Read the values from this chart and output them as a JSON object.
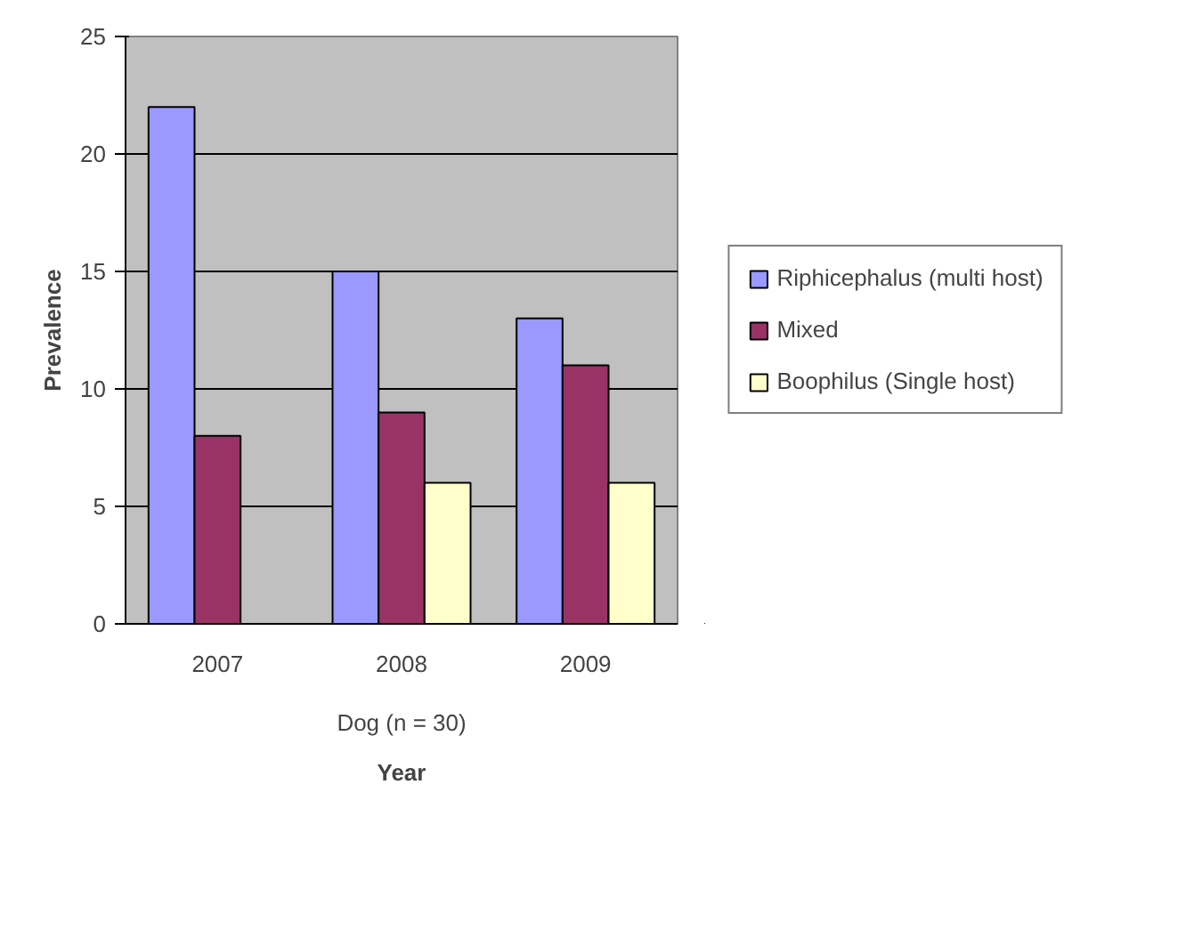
{
  "chart_data": {
    "type": "bar",
    "xlabel": "Year",
    "ylabel": "Prevalence",
    "categories": [
      "2007",
      "2008",
      "2009"
    ],
    "series": [
      {
        "name": "Riphicephalus (multi host)",
        "color": "#9999ff",
        "values": [
          22,
          15,
          13
        ]
      },
      {
        "name": "Mixed",
        "color": "#993366",
        "values": [
          8,
          9,
          11
        ]
      },
      {
        "name": "Boophilus (Single host)",
        "color": "#ffffcc",
        "values": [
          0,
          6,
          6
        ]
      }
    ],
    "annotations": [
      "Dog (n = 30)"
    ],
    "ylim": [
      0,
      25
    ],
    "yticks": [
      0,
      5,
      10,
      15,
      20,
      25
    ],
    "grid": "y",
    "legend": "right"
  }
}
